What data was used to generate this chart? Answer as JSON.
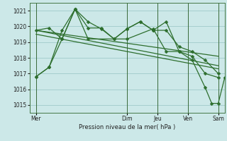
{
  "background_color": "#cce8e8",
  "grid_color": "#88bbbb",
  "line_color": "#2d6e2d",
  "xlabel": "Pression niveau de la mer( hPa )",
  "ylim": [
    1014.5,
    1021.5
  ],
  "yticks": [
    1015,
    1016,
    1017,
    1018,
    1019,
    1020,
    1021
  ],
  "x_day_labels": [
    "Mer",
    "Dim",
    "Jeu",
    "Ven",
    "Sam"
  ],
  "x_day_positions": [
    0,
    42,
    56,
    70,
    84
  ],
  "xlim": [
    -3,
    87
  ],
  "series1_x": [
    0,
    6,
    12,
    18,
    24,
    30,
    36,
    42,
    48,
    54,
    60,
    66,
    72,
    78,
    84
  ],
  "series1_y": [
    1016.8,
    1017.4,
    1019.75,
    1021.1,
    1019.9,
    1019.9,
    1019.2,
    1019.85,
    1020.3,
    1019.75,
    1019.75,
    1018.7,
    1018.4,
    1017.85,
    1017.0
  ],
  "series2_x": [
    0,
    6,
    12,
    18,
    24,
    30,
    36,
    42,
    48,
    54,
    60,
    66,
    72,
    78,
    84
  ],
  "series2_y": [
    1019.75,
    1019.9,
    1019.2,
    1021.1,
    1020.3,
    1019.85,
    1019.2,
    1019.85,
    1020.3,
    1019.75,
    1020.3,
    1018.4,
    1018.1,
    1017.0,
    1016.75
  ],
  "trend1_x": [
    0,
    84
  ],
  "trend1_y": [
    1019.75,
    1017.5
  ],
  "trend2_x": [
    0,
    84
  ],
  "trend2_y": [
    1019.75,
    1018.1
  ],
  "trend3_x": [
    0,
    84
  ],
  "trend3_y": [
    1019.5,
    1017.3
  ],
  "series3_x": [
    0,
    6,
    12,
    18,
    24,
    42,
    54,
    60,
    66,
    72,
    78,
    81,
    84,
    87
  ],
  "series3_y": [
    1016.8,
    1017.4,
    1019.2,
    1021.1,
    1019.2,
    1019.2,
    1019.85,
    1018.4,
    1018.4,
    1017.85,
    1016.1,
    1015.1,
    1015.1,
    1016.75
  ],
  "vline_positions": [
    0,
    42,
    56,
    70,
    84
  ],
  "markersize": 2.5,
  "linewidth": 0.9,
  "ylabel_fontsize": 6.0,
  "tick_fontsize": 5.5
}
